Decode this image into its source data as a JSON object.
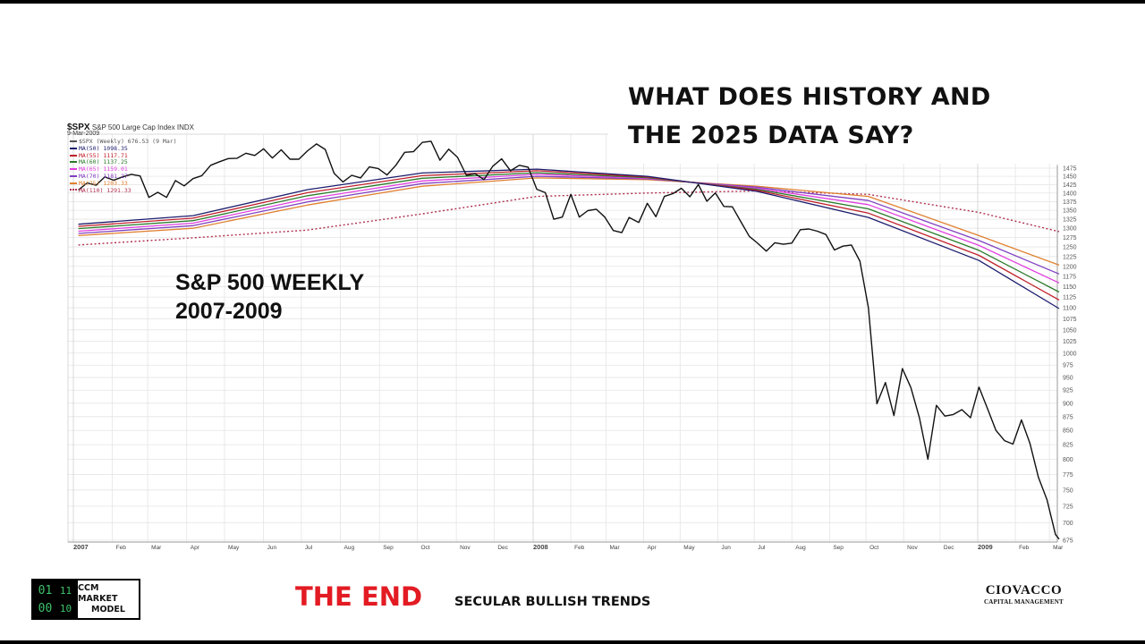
{
  "headline": {
    "line1": "WHAT DOES HISTORY AND",
    "line2": "THE 2025 DATA SAY?"
  },
  "subtitle": {
    "line1": "S&P 500 WEEKLY",
    "line2": "2007-2009"
  },
  "footer": {
    "logo_digits": [
      "01",
      "11",
      "00",
      "10"
    ],
    "logo_line1": "CCM MARKET",
    "logo_line2": "MODEL",
    "the_end": "THE END",
    "trends": "SECULAR BULLISH TRENDS",
    "company_line1": "CIOVACCO",
    "company_line2": "CAPITAL MANAGEMENT",
    "the_end_color": "#e31b23"
  },
  "chart_data": {
    "type": "line",
    "symbol": "$SPX",
    "title": "S&P 500 Large Cap Index",
    "exchange": "INDX",
    "date": "9-Mar-2009",
    "y_scale": "log",
    "ylim": [
      675,
      1475
    ],
    "y_ticks": [
      675,
      700,
      725,
      750,
      775,
      800,
      825,
      850,
      875,
      900,
      925,
      950,
      975,
      1000,
      1025,
      1050,
      1075,
      1100,
      1125,
      1150,
      1175,
      1200,
      1225,
      1250,
      1275,
      1300,
      1325,
      1350,
      1375,
      1400,
      1425,
      1450,
      1475
    ],
    "y_axis_side": "right",
    "grid": true,
    "legend_placement": "top-left",
    "x_ticks": [
      {
        "label": "2007",
        "date": "2007-01-01",
        "bold": true
      },
      {
        "label": "Feb",
        "date": "2007-02-01"
      },
      {
        "label": "Mar",
        "date": "2007-03-01"
      },
      {
        "label": "Apr",
        "date": "2007-04-01"
      },
      {
        "label": "May",
        "date": "2007-05-01"
      },
      {
        "label": "Jun",
        "date": "2007-06-01"
      },
      {
        "label": "Jul",
        "date": "2007-07-01"
      },
      {
        "label": "Aug",
        "date": "2007-08-01"
      },
      {
        "label": "Sep",
        "date": "2007-09-01"
      },
      {
        "label": "Oct",
        "date": "2007-10-01"
      },
      {
        "label": "Nov",
        "date": "2007-11-01"
      },
      {
        "label": "Dec",
        "date": "2007-12-01"
      },
      {
        "label": "2008",
        "date": "2008-01-01",
        "bold": true
      },
      {
        "label": "Feb",
        "date": "2008-02-01"
      },
      {
        "label": "Mar",
        "date": "2008-03-01"
      },
      {
        "label": "Apr",
        "date": "2008-04-01"
      },
      {
        "label": "May",
        "date": "2008-05-01"
      },
      {
        "label": "Jun",
        "date": "2008-06-01"
      },
      {
        "label": "Jul",
        "date": "2008-07-01"
      },
      {
        "label": "Aug",
        "date": "2008-08-01"
      },
      {
        "label": "Sep",
        "date": "2008-09-01"
      },
      {
        "label": "Oct",
        "date": "2008-10-01"
      },
      {
        "label": "Nov",
        "date": "2008-11-01"
      },
      {
        "label": "Dec",
        "date": "2008-12-01"
      },
      {
        "label": "2009",
        "date": "2009-01-01",
        "bold": true
      },
      {
        "label": "Feb",
        "date": "2009-02-01"
      },
      {
        "label": "Mar",
        "date": "2009-03-01"
      }
    ],
    "price": {
      "name": "$SPX (Weekly) 676.53 (9 Mar)",
      "color": "#111111",
      "points": [
        [
          "2007-01-05",
          1409
        ],
        [
          "2007-01-12",
          1430
        ],
        [
          "2007-01-19",
          1423
        ],
        [
          "2007-01-26",
          1448
        ],
        [
          "2007-02-02",
          1438
        ],
        [
          "2007-02-09",
          1448
        ],
        [
          "2007-02-16",
          1456
        ],
        [
          "2007-02-23",
          1451
        ],
        [
          "2007-03-02",
          1387
        ],
        [
          "2007-03-09",
          1402
        ],
        [
          "2007-03-16",
          1387
        ],
        [
          "2007-03-23",
          1437
        ],
        [
          "2007-03-30",
          1421
        ],
        [
          "2007-04-06",
          1443
        ],
        [
          "2007-04-13",
          1452
        ],
        [
          "2007-04-20",
          1484
        ],
        [
          "2007-04-27",
          1495
        ],
        [
          "2007-05-04",
          1505
        ],
        [
          "2007-05-11",
          1506
        ],
        [
          "2007-05-18",
          1522
        ],
        [
          "2007-05-25",
          1515
        ],
        [
          "2007-06-01",
          1536
        ],
        [
          "2007-06-08",
          1507
        ],
        [
          "2007-06-15",
          1533
        ],
        [
          "2007-06-22",
          1503
        ],
        [
          "2007-06-29",
          1503
        ],
        [
          "2007-07-06",
          1530
        ],
        [
          "2007-07-13",
          1552
        ],
        [
          "2007-07-20",
          1534
        ],
        [
          "2007-07-27",
          1459
        ],
        [
          "2007-08-03",
          1433
        ],
        [
          "2007-08-10",
          1453
        ],
        [
          "2007-08-17",
          1445
        ],
        [
          "2007-08-24",
          1479
        ],
        [
          "2007-08-31",
          1474
        ],
        [
          "2007-09-07",
          1454
        ],
        [
          "2007-09-14",
          1484
        ],
        [
          "2007-09-21",
          1525
        ],
        [
          "2007-09-28",
          1527
        ],
        [
          "2007-10-05",
          1557
        ],
        [
          "2007-10-12",
          1561
        ],
        [
          "2007-10-19",
          1500
        ],
        [
          "2007-10-26",
          1535
        ],
        [
          "2007-11-02",
          1509
        ],
        [
          "2007-11-09",
          1453
        ],
        [
          "2007-11-16",
          1458
        ],
        [
          "2007-11-23",
          1440
        ],
        [
          "2007-11-30",
          1481
        ],
        [
          "2007-12-07",
          1504
        ],
        [
          "2007-12-14",
          1467
        ],
        [
          "2007-12-21",
          1484
        ],
        [
          "2007-12-28",
          1478
        ],
        [
          "2008-01-04",
          1411
        ],
        [
          "2008-01-11",
          1401
        ],
        [
          "2008-01-18",
          1325
        ],
        [
          "2008-01-25",
          1331
        ],
        [
          "2008-02-01",
          1396
        ],
        [
          "2008-02-08",
          1331
        ],
        [
          "2008-02-15",
          1349
        ],
        [
          "2008-02-22",
          1353
        ],
        [
          "2008-02-29",
          1331
        ],
        [
          "2008-03-07",
          1294
        ],
        [
          "2008-03-14",
          1288
        ],
        [
          "2008-03-20",
          1330
        ],
        [
          "2008-03-28",
          1316
        ],
        [
          "2008-04-04",
          1370
        ],
        [
          "2008-04-11",
          1332
        ],
        [
          "2008-04-18",
          1390
        ],
        [
          "2008-04-25",
          1398
        ],
        [
          "2008-05-02",
          1414
        ],
        [
          "2008-05-09",
          1389
        ],
        [
          "2008-05-16",
          1425
        ],
        [
          "2008-05-23",
          1376
        ],
        [
          "2008-05-30",
          1400
        ],
        [
          "2008-06-06",
          1361
        ],
        [
          "2008-06-13",
          1360
        ],
        [
          "2008-06-20",
          1318
        ],
        [
          "2008-06-27",
          1278
        ],
        [
          "2008-07-03",
          1262
        ],
        [
          "2008-07-11",
          1239
        ],
        [
          "2008-07-18",
          1261
        ],
        [
          "2008-07-25",
          1257
        ],
        [
          "2008-08-01",
          1260
        ],
        [
          "2008-08-08",
          1296
        ],
        [
          "2008-08-15",
          1298
        ],
        [
          "2008-08-22",
          1292
        ],
        [
          "2008-08-29",
          1283
        ],
        [
          "2008-09-05",
          1242
        ],
        [
          "2008-09-12",
          1252
        ],
        [
          "2008-09-19",
          1255
        ],
        [
          "2008-09-26",
          1213
        ],
        [
          "2008-10-03",
          1100
        ],
        [
          "2008-10-10",
          899
        ],
        [
          "2008-10-17",
          940
        ],
        [
          "2008-10-24",
          877
        ],
        [
          "2008-10-31",
          968
        ],
        [
          "2008-11-07",
          930
        ],
        [
          "2008-11-14",
          873
        ],
        [
          "2008-11-21",
          800
        ],
        [
          "2008-11-28",
          896
        ],
        [
          "2008-12-05",
          876
        ],
        [
          "2008-12-12",
          879
        ],
        [
          "2008-12-19",
          888
        ],
        [
          "2008-12-26",
          873
        ],
        [
          "2009-01-02",
          931
        ],
        [
          "2009-01-09",
          890
        ],
        [
          "2009-01-16",
          850
        ],
        [
          "2009-01-23",
          832
        ],
        [
          "2009-01-30",
          826
        ],
        [
          "2009-02-06",
          869
        ],
        [
          "2009-02-13",
          827
        ],
        [
          "2009-02-20",
          770
        ],
        [
          "2009-02-27",
          735
        ],
        [
          "2009-03-06",
          683
        ],
        [
          "2009-03-09",
          676.53
        ]
      ]
    },
    "ma_dates": [
      "2007-01-05",
      "2007-04-06",
      "2007-07-06",
      "2007-10-05",
      "2008-01-04",
      "2008-04-04",
      "2008-07-03",
      "2008-10-03",
      "2009-01-02",
      "2009-03-09"
    ],
    "moving_averages": [
      {
        "name": "MA(50)",
        "last": "1098.35",
        "color": "#1c1c6e",
        "dashed": false,
        "values": [
          1311,
          1335,
          1410,
          1460,
          1472,
          1450,
          1405,
          1330,
          1215,
          1098
        ]
      },
      {
        "name": "MA(55)",
        "last": "1117.71",
        "color": "#c0202a",
        "dashed": false,
        "values": [
          1305,
          1328,
          1401,
          1452,
          1467,
          1448,
          1408,
          1342,
          1228,
          1118
        ]
      },
      {
        "name": "MA(60)",
        "last": "1137.25",
        "color": "#2a7a2a",
        "dashed": false,
        "values": [
          1299,
          1321,
          1392,
          1444,
          1461,
          1446,
          1411,
          1354,
          1241,
          1137
        ]
      },
      {
        "name": "MA(65)",
        "last": "1159.01",
        "color": "#e040e0",
        "dashed": false,
        "values": [
          1292,
          1314,
          1383,
          1436,
          1456,
          1444,
          1414,
          1366,
          1254,
          1159
        ]
      },
      {
        "name": "MA(70)",
        "last": "1181.27",
        "color": "#8040c0",
        "dashed": false,
        "values": [
          1286,
          1307,
          1374,
          1428,
          1450,
          1442,
          1417,
          1378,
          1267,
          1181
        ]
      },
      {
        "name": "MA(75)",
        "last": "1203.33",
        "color": "#e08030",
        "dashed": false,
        "values": [
          1280,
          1300,
          1365,
          1420,
          1445,
          1440,
          1420,
          1390,
          1280,
          1203
        ]
      },
      {
        "name": "MA(110)",
        "last": "1291.33",
        "color": "#b03050",
        "dashed": true,
        "values": [
          1255,
          1274,
          1295,
          1340,
          1390,
          1400,
          1406,
          1396,
          1344,
          1291
        ]
      }
    ]
  }
}
